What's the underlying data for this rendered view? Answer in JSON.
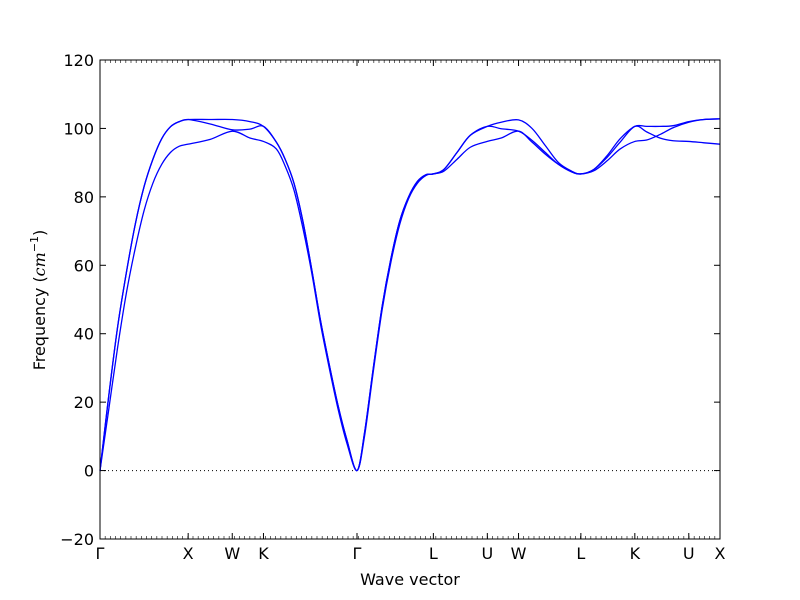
{
  "chart_data": {
    "type": "line",
    "xlabel": "Wave vector",
    "ylabel_text": "Frequency (",
    "ylabel_unit": "cm",
    "ylabel_exp": "−1",
    "ylabel_close": ")",
    "ylim": [
      -20,
      120
    ],
    "yticks": [
      -20,
      0,
      20,
      40,
      60,
      80,
      100,
      120
    ],
    "ytick_labels": [
      "−20",
      "0",
      "20",
      "40",
      "60",
      "80",
      "100",
      "120"
    ],
    "zero_line": "dotted",
    "grid": false,
    "line_color": "#0000ff",
    "kpoints": [
      {
        "label": "Γ",
        "x": 0
      },
      {
        "label": "X",
        "x": 1.0
      },
      {
        "label": "W",
        "x": 1.5
      },
      {
        "label": "K",
        "x": 1.854
      },
      {
        "label": "Γ",
        "x": 2.915
      },
      {
        "label": "L",
        "x": 3.781
      },
      {
        "label": "U",
        "x": 4.393
      },
      {
        "label": "W",
        "x": 4.747
      },
      {
        "label": "L",
        "x": 5.454
      },
      {
        "label": "K",
        "x": 6.066
      },
      {
        "label": "U",
        "x": 6.678
      },
      {
        "label": "X",
        "x": 7.032
      }
    ],
    "xlim": [
      0,
      7.032
    ],
    "series": [
      {
        "x": [
          0,
          0.1,
          0.2,
          0.3,
          0.4,
          0.5,
          0.6,
          0.7,
          0.8,
          0.9,
          1.0,
          1.25,
          1.5,
          1.7,
          1.854,
          2.0,
          2.1,
          2.2,
          2.3,
          2.4,
          2.5,
          2.6,
          2.7,
          2.8,
          2.915,
          3.0,
          3.1,
          3.2,
          3.3,
          3.4,
          3.5,
          3.6,
          3.7,
          3.781,
          3.9,
          4.05,
          4.2,
          4.393,
          4.55,
          4.747,
          4.9,
          5.05,
          5.2,
          5.35,
          5.454,
          5.6,
          5.75,
          5.9,
          6.066,
          6.2,
          6.35,
          6.5,
          6.678,
          6.85,
          7.032
        ],
        "y": [
          0,
          22,
          42,
          58,
          72,
          83,
          91,
          97,
          100.5,
          102,
          102.6,
          102.6,
          102.6,
          102.0,
          100.6,
          96,
          91,
          84,
          73,
          59,
          44,
          31,
          19,
          9,
          0,
          11,
          30,
          48,
          62,
          73,
          80,
          84.5,
          86.5,
          86.7,
          88,
          93,
          98,
          100.6,
          101.8,
          102.5,
          100,
          95,
          90,
          87.5,
          86.7,
          88,
          92,
          97,
          100.6,
          100.6,
          100.6,
          100.8,
          102.0,
          102.6,
          102.8
        ]
      },
      {
        "x": [
          0,
          0.1,
          0.2,
          0.3,
          0.4,
          0.5,
          0.6,
          0.7,
          0.8,
          0.9,
          1.0,
          1.25,
          1.5,
          1.7,
          1.854,
          2.0,
          2.1,
          2.2,
          2.3,
          2.4,
          2.5,
          2.6,
          2.7,
          2.8,
          2.915,
          3.0,
          3.1,
          3.2,
          3.3,
          3.4,
          3.5,
          3.6,
          3.7,
          3.781,
          3.9,
          4.05,
          4.2,
          4.393,
          4.55,
          4.747,
          4.9,
          5.05,
          5.2,
          5.35,
          5.454,
          5.6,
          5.75,
          5.9,
          6.066,
          6.2,
          6.35,
          6.5,
          6.678,
          6.85,
          7.032
        ],
        "y": [
          0,
          22,
          42,
          58,
          72,
          83,
          91,
          97,
          100.5,
          102,
          102.6,
          101.3,
          99.6,
          99.8,
          100.6,
          96,
          91,
          84,
          73,
          59,
          44,
          31,
          19,
          9,
          0,
          11,
          30,
          48,
          62,
          73,
          80,
          84.5,
          86.5,
          86.7,
          88,
          93,
          98,
          100.6,
          99.9,
          99.2,
          96.5,
          93,
          89.5,
          87.3,
          86.7,
          88,
          91.5,
          96,
          100.6,
          99.0,
          97.2,
          96.4,
          96.2,
          95.8,
          95.4
        ]
      },
      {
        "x": [
          0,
          0.1,
          0.2,
          0.3,
          0.4,
          0.5,
          0.6,
          0.7,
          0.8,
          0.9,
          1.0,
          1.25,
          1.5,
          1.7,
          1.854,
          2.0,
          2.1,
          2.2,
          2.3,
          2.4,
          2.5,
          2.6,
          2.7,
          2.8,
          2.915,
          3.0,
          3.1,
          3.2,
          3.3,
          3.4,
          3.5,
          3.6,
          3.7,
          3.781,
          3.9,
          4.05,
          4.2,
          4.393,
          4.55,
          4.747,
          4.9,
          5.05,
          5.2,
          5.35,
          5.454,
          5.6,
          5.75,
          5.9,
          6.066,
          6.2,
          6.35,
          6.5,
          6.678,
          6.85,
          7.032
        ],
        "y": [
          0,
          18,
          36,
          52,
          65,
          76,
          84,
          89.5,
          93,
          94.8,
          95.4,
          96.8,
          99.2,
          97.2,
          96.2,
          94,
          89,
          82,
          71,
          58,
          43,
          30,
          18,
          8,
          0,
          10,
          29,
          47,
          61,
          72,
          79.5,
          84,
          86.3,
          86.7,
          87.5,
          91,
          94.5,
          96.2,
          97.2,
          99.2,
          96,
          92.5,
          89.5,
          87.3,
          86.7,
          87.6,
          90.5,
          94,
          96.2,
          96.6,
          98.2,
          100.2,
          101.8,
          102.6,
          102.8
        ]
      }
    ]
  }
}
